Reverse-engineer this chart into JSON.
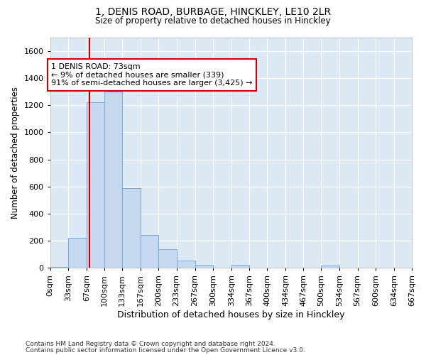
{
  "title_line1": "1, DENIS ROAD, BURBAGE, HINCKLEY, LE10 2LR",
  "title_line2": "Size of property relative to detached houses in Hinckley",
  "xlabel": "Distribution of detached houses by size in Hinckley",
  "ylabel": "Number of detached properties",
  "footer_line1": "Contains HM Land Registry data © Crown copyright and database right 2024.",
  "footer_line2": "Contains public sector information licensed under the Open Government Licence v3.0.",
  "bin_edges": [
    0,
    33,
    67,
    100,
    133,
    167,
    200,
    233,
    267,
    300,
    334,
    367,
    400,
    434,
    467,
    500,
    534,
    567,
    600,
    634,
    667
  ],
  "bar_heights": [
    5,
    220,
    1220,
    1300,
    590,
    245,
    140,
    55,
    25,
    0,
    25,
    0,
    0,
    0,
    0,
    20,
    0,
    0,
    0,
    0
  ],
  "bar_color": "#c5d8f0",
  "bar_edge_color": "#7aabd4",
  "bar_linewidth": 0.7,
  "vline_x": 73,
  "vline_color": "#cc0000",
  "annotation_text": "1 DENIS ROAD: 73sqm\n← 9% of detached houses are smaller (339)\n91% of semi-detached houses are larger (3,425) →",
  "annotation_box_color": "#ffffff",
  "annotation_box_edgecolor": "#cc0000",
  "ylim": [
    0,
    1700
  ],
  "yticks": [
    0,
    200,
    400,
    600,
    800,
    1000,
    1200,
    1400,
    1600
  ],
  "bg_color": "#dde8f5",
  "grid_color": "#ffffff",
  "tick_labels": [
    "0sqm",
    "33sqm",
    "67sqm",
    "100sqm",
    "133sqm",
    "167sqm",
    "200sqm",
    "233sqm",
    "267sqm",
    "300sqm",
    "334sqm",
    "367sqm",
    "400sqm",
    "434sqm",
    "467sqm",
    "500sqm",
    "534sqm",
    "567sqm",
    "600sqm",
    "634sqm",
    "667sqm"
  ]
}
